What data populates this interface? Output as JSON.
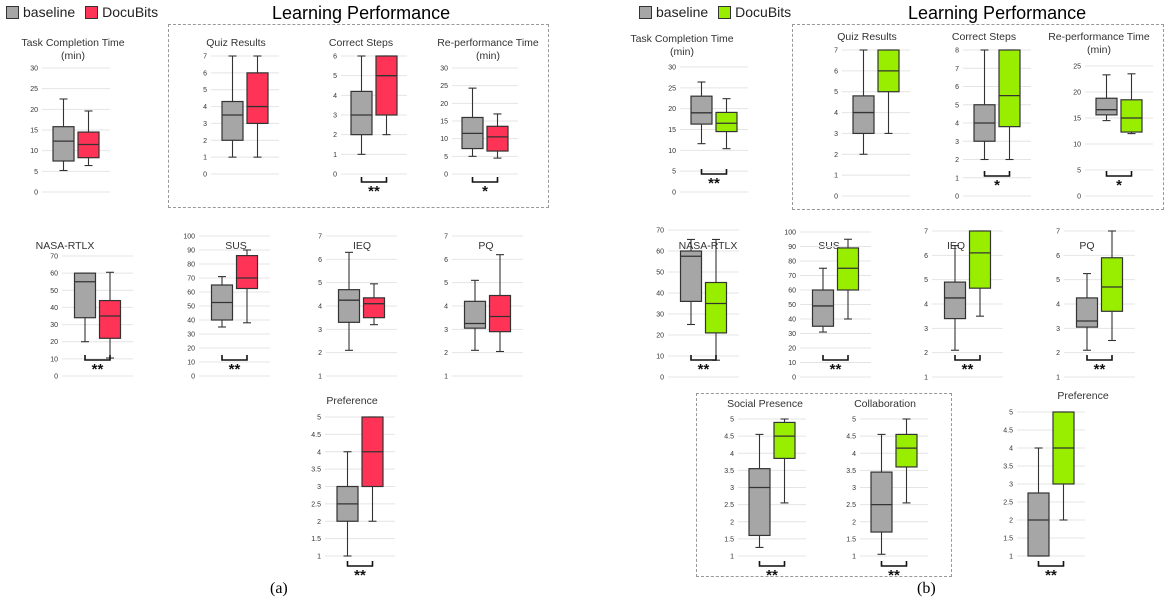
{
  "colors": {
    "baseline": "#a6a6a6",
    "docubits_a": "#ff3355",
    "docubits_b": "#99ee00",
    "stroke": "#333333"
  },
  "panels": [
    {
      "caption": "(a)",
      "legend": [
        {
          "label": "baseline",
          "color": "#a6a6a6"
        },
        {
          "label": "DocuBits",
          "color": "#ff3355"
        }
      ],
      "section_title": "Learning Performance"
    },
    {
      "caption": "(b)",
      "legend": [
        {
          "label": "baseline",
          "color": "#a6a6a6"
        },
        {
          "label": "DocuBits",
          "color": "#99ee00"
        }
      ],
      "section_title": "Learning Performance"
    }
  ],
  "chart_data": [
    {
      "panel": "a",
      "type": "box",
      "title": [
        "Task Completion Time",
        "(min)"
      ],
      "ylim": [
        0,
        30
      ],
      "ticks": [
        0,
        5,
        10,
        15,
        20,
        25,
        30
      ],
      "significance": "",
      "series": [
        {
          "name": "baseline",
          "min": 5.2,
          "q1": 7.5,
          "median": 12.3,
          "q3": 15.8,
          "max": 22.5
        },
        {
          "name": "DocuBits",
          "min": 6.4,
          "q1": 8.3,
          "median": 11.5,
          "q3": 14.5,
          "max": 19.6
        }
      ]
    },
    {
      "panel": "a",
      "type": "box",
      "title": [
        "Quiz Results"
      ],
      "ylim": [
        0,
        7
      ],
      "ticks": [
        0,
        1,
        2,
        3,
        4,
        5,
        6,
        7
      ],
      "significance": "",
      "series": [
        {
          "name": "baseline",
          "min": 1,
          "q1": 2,
          "median": 3.5,
          "q3": 4.3,
          "max": 7
        },
        {
          "name": "DocuBits",
          "min": 1,
          "q1": 3,
          "median": 4,
          "q3": 6,
          "max": 7
        }
      ]
    },
    {
      "panel": "a",
      "type": "box",
      "title": [
        "Correct Steps"
      ],
      "ylim": [
        0,
        6
      ],
      "ticks": [
        0,
        1,
        2,
        3,
        4,
        5,
        6
      ],
      "significance": "**",
      "series": [
        {
          "name": "baseline",
          "min": 1,
          "q1": 2,
          "median": 3,
          "q3": 4.2,
          "max": 6
        },
        {
          "name": "DocuBits",
          "min": 2,
          "q1": 3,
          "median": 5,
          "q3": 6,
          "max": 6
        }
      ]
    },
    {
      "panel": "a",
      "type": "box",
      "title": [
        "Re-performance Time",
        "(min)"
      ],
      "ylim": [
        0,
        30
      ],
      "ticks": [
        0,
        5,
        10,
        15,
        20,
        25,
        30
      ],
      "significance": "*",
      "series": [
        {
          "name": "baseline",
          "min": 5,
          "q1": 7.2,
          "median": 11.5,
          "q3": 16,
          "max": 24.3
        },
        {
          "name": "DocuBits",
          "min": 4.5,
          "q1": 6.5,
          "median": 10.5,
          "q3": 13.5,
          "max": 17
        }
      ]
    },
    {
      "panel": "a",
      "type": "box",
      "title": [
        "NASA-RTLX"
      ],
      "ylim": [
        0,
        70
      ],
      "ticks": [
        0,
        10,
        20,
        30,
        40,
        50,
        60,
        70
      ],
      "significance": "**",
      "series": [
        {
          "name": "baseline",
          "min": 20,
          "q1": 34,
          "median": 55,
          "q3": 60,
          "max": 60
        },
        {
          "name": "DocuBits",
          "min": 10.5,
          "q1": 22,
          "median": 35,
          "q3": 44,
          "max": 60.5
        }
      ]
    },
    {
      "panel": "a",
      "type": "box",
      "title": [
        "SUS"
      ],
      "ylim": [
        0,
        100
      ],
      "ticks": [
        0,
        10,
        20,
        30,
        40,
        50,
        60,
        70,
        80,
        90,
        100
      ],
      "significance": "**",
      "series": [
        {
          "name": "baseline",
          "min": 35,
          "q1": 40,
          "median": 52.5,
          "q3": 65,
          "max": 71
        },
        {
          "name": "DocuBits",
          "min": 38,
          "q1": 62.5,
          "median": 70,
          "q3": 86,
          "max": 90
        }
      ]
    },
    {
      "panel": "a",
      "type": "box",
      "title": [
        "IEQ"
      ],
      "ylim": [
        1,
        7
      ],
      "ticks": [
        1,
        2,
        3,
        4,
        5,
        6,
        7
      ],
      "significance": "",
      "series": [
        {
          "name": "baseline",
          "min": 2.1,
          "q1": 3.3,
          "median": 4.25,
          "q3": 4.7,
          "max": 6.3
        },
        {
          "name": "DocuBits",
          "min": 3.2,
          "q1": 3.5,
          "median": 4.1,
          "q3": 4.35,
          "max": 4.95
        }
      ]
    },
    {
      "panel": "a",
      "type": "box",
      "title": [
        "PQ"
      ],
      "ylim": [
        1,
        7
      ],
      "ticks": [
        1,
        2,
        3,
        4,
        5,
        6,
        7
      ],
      "significance": "",
      "series": [
        {
          "name": "baseline",
          "min": 2.1,
          "q1": 3.05,
          "median": 3.25,
          "q3": 4.2,
          "max": 5.1
        },
        {
          "name": "DocuBits",
          "min": 2.05,
          "q1": 2.9,
          "median": 3.55,
          "q3": 4.45,
          "max": 6.2
        }
      ]
    },
    {
      "panel": "a",
      "type": "box",
      "title": [
        "Preference"
      ],
      "ylim": [
        1,
        5
      ],
      "ticks": [
        1,
        1.5,
        2,
        2.5,
        3,
        3.5,
        4,
        4.5,
        5
      ],
      "significance": "**",
      "series": [
        {
          "name": "baseline",
          "min": 1,
          "q1": 2,
          "median": 2.5,
          "q3": 3,
          "max": 4
        },
        {
          "name": "DocuBits",
          "min": 2,
          "q1": 3,
          "median": 4,
          "q3": 5,
          "max": 5
        }
      ]
    },
    {
      "panel": "b",
      "type": "box",
      "title": [
        "Task Completion Time",
        "(min)"
      ],
      "ylim": [
        0,
        30
      ],
      "ticks": [
        0,
        5,
        10,
        15,
        20,
        25,
        30
      ],
      "significance": "**",
      "series": [
        {
          "name": "baseline",
          "min": 11.6,
          "q1": 16.3,
          "median": 19,
          "q3": 23,
          "max": 26.4
        },
        {
          "name": "DocuBits",
          "min": 10.4,
          "q1": 14.5,
          "median": 16.5,
          "q3": 19.1,
          "max": 22.4
        }
      ]
    },
    {
      "panel": "b",
      "type": "box",
      "title": [
        "Quiz Results"
      ],
      "ylim": [
        0,
        7
      ],
      "ticks": [
        0,
        1,
        2,
        3,
        4,
        5,
        6,
        7
      ],
      "significance": "",
      "series": [
        {
          "name": "baseline",
          "min": 2,
          "q1": 3,
          "median": 4,
          "q3": 4.8,
          "max": 7
        },
        {
          "name": "DocuBits",
          "min": 3,
          "q1": 5,
          "median": 6,
          "q3": 7,
          "max": 7
        }
      ]
    },
    {
      "panel": "b",
      "type": "box",
      "title": [
        "Correct Steps"
      ],
      "ylim": [
        0,
        8
      ],
      "ticks": [
        0,
        1,
        2,
        3,
        4,
        5,
        6,
        7,
        8
      ],
      "significance": "*",
      "series": [
        {
          "name": "baseline",
          "min": 2,
          "q1": 3,
          "median": 4,
          "q3": 5,
          "max": 8
        },
        {
          "name": "DocuBits",
          "min": 2,
          "q1": 3.8,
          "median": 5.5,
          "q3": 8,
          "max": 8
        }
      ]
    },
    {
      "panel": "b",
      "type": "box",
      "title": [
        "Re-performance Time",
        "(min)"
      ],
      "ylim": [
        0,
        25
      ],
      "ticks": [
        0,
        5,
        10,
        15,
        20,
        25
      ],
      "significance": "*",
      "series": [
        {
          "name": "baseline",
          "min": 14.5,
          "q1": 15.6,
          "median": 16.6,
          "q3": 18.8,
          "max": 23.3
        },
        {
          "name": "DocuBits",
          "min": 12,
          "q1": 12.3,
          "median": 15,
          "q3": 18.5,
          "max": 23.5
        }
      ]
    },
    {
      "panel": "b",
      "type": "box",
      "title": [
        "NASA-RTLX"
      ],
      "ylim": [
        0,
        70
      ],
      "ticks": [
        0,
        10,
        20,
        30,
        40,
        50,
        60,
        70
      ],
      "significance": "**",
      "series": [
        {
          "name": "baseline",
          "min": 25,
          "q1": 36,
          "median": 57.5,
          "q3": 60,
          "max": 65.5
        },
        {
          "name": "DocuBits",
          "min": 8,
          "q1": 21,
          "median": 35,
          "q3": 45,
          "max": 65.5
        }
      ]
    },
    {
      "panel": "b",
      "type": "box",
      "title": [
        "SUS"
      ],
      "ylim": [
        0,
        100
      ],
      "ticks": [
        0,
        10,
        20,
        30,
        40,
        50,
        60,
        70,
        80,
        90,
        100
      ],
      "significance": "**",
      "series": [
        {
          "name": "baseline",
          "min": 31,
          "q1": 35,
          "median": 49,
          "q3": 60,
          "max": 75
        },
        {
          "name": "DocuBits",
          "min": 40,
          "q1": 60,
          "median": 75,
          "q3": 89,
          "max": 95
        }
      ]
    },
    {
      "panel": "b",
      "type": "box",
      "title": [
        "IEQ"
      ],
      "ylim": [
        1,
        7
      ],
      "ticks": [
        1,
        2,
        3,
        4,
        5,
        6,
        7
      ],
      "significance": "**",
      "series": [
        {
          "name": "baseline",
          "min": 2.1,
          "q1": 3.4,
          "median": 4.25,
          "q3": 4.9,
          "max": 6.4
        },
        {
          "name": "DocuBits",
          "min": 3.5,
          "q1": 4.65,
          "median": 6.1,
          "q3": 7,
          "max": 7
        }
      ]
    },
    {
      "panel": "b",
      "type": "box",
      "title": [
        "PQ"
      ],
      "ylim": [
        1,
        7
      ],
      "ticks": [
        1,
        2,
        3,
        4,
        5,
        6,
        7
      ],
      "significance": "**",
      "series": [
        {
          "name": "baseline",
          "min": 2.1,
          "q1": 3.05,
          "median": 3.3,
          "q3": 4.25,
          "max": 5.25
        },
        {
          "name": "DocuBits",
          "min": 2.5,
          "q1": 3.7,
          "median": 4.7,
          "q3": 5.9,
          "max": 7
        }
      ]
    },
    {
      "panel": "b",
      "type": "box",
      "title": [
        "Social Presence"
      ],
      "ylim": [
        1,
        5
      ],
      "ticks": [
        1,
        1.5,
        2,
        2.5,
        3,
        3.5,
        4,
        4.5,
        5
      ],
      "significance": "**",
      "series": [
        {
          "name": "baseline",
          "min": 1.25,
          "q1": 1.6,
          "median": 3,
          "q3": 3.55,
          "max": 4.55
        },
        {
          "name": "DocuBits",
          "min": 2.55,
          "q1": 3.85,
          "median": 4.5,
          "q3": 4.9,
          "max": 5
        }
      ]
    },
    {
      "panel": "b",
      "type": "box",
      "title": [
        "Collaboration"
      ],
      "ylim": [
        1,
        5
      ],
      "ticks": [
        1,
        1.5,
        2,
        2.5,
        3,
        3.5,
        4,
        4.5,
        5
      ],
      "significance": "**",
      "series": [
        {
          "name": "baseline",
          "min": 1.05,
          "q1": 1.7,
          "median": 2.5,
          "q3": 3.45,
          "max": 4.55
        },
        {
          "name": "DocuBits",
          "min": 2.55,
          "q1": 3.6,
          "median": 4.15,
          "q3": 4.55,
          "max": 5
        }
      ]
    },
    {
      "panel": "b",
      "type": "box",
      "title": [
        "Preference"
      ],
      "ylim": [
        1,
        5
      ],
      "ticks": [
        1,
        1.5,
        2,
        2.5,
        3,
        3.5,
        4,
        4.5,
        5
      ],
      "significance": "**",
      "series": [
        {
          "name": "baseline",
          "min": 1,
          "q1": 1,
          "median": 2,
          "q3": 2.75,
          "max": 4
        },
        {
          "name": "DocuBits",
          "min": 2,
          "q1": 3,
          "median": 4,
          "q3": 5,
          "max": 5
        }
      ]
    }
  ]
}
